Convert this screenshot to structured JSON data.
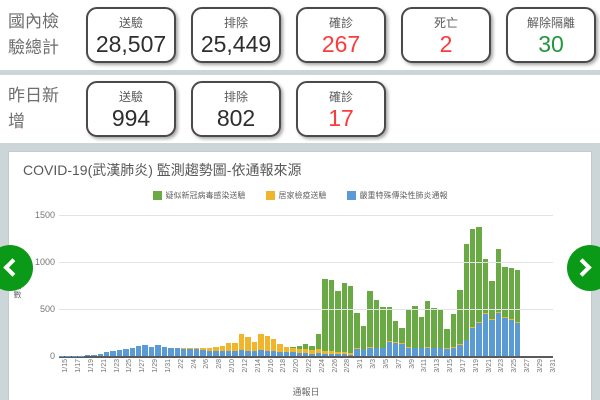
{
  "summary": {
    "rows": [
      {
        "label": "國內檢驗總計",
        "stats": [
          {
            "name": "送驗",
            "value": "28,507",
            "color": "#2e2e2e"
          },
          {
            "name": "排除",
            "value": "25,449",
            "color": "#2e2e2e"
          },
          {
            "name": "確診",
            "value": "267",
            "color": "#fb3b3b"
          },
          {
            "name": "死亡",
            "value": "2",
            "color": "#fb3b3b"
          },
          {
            "name": "解除隔離",
            "value": "30",
            "color": "#23963f"
          }
        ]
      },
      {
        "label": "昨日新增",
        "stats": [
          {
            "name": "送驗",
            "value": "994",
            "color": "#2e2e2e"
          },
          {
            "name": "排除",
            "value": "802",
            "color": "#2e2e2e"
          },
          {
            "name": "確診",
            "value": "17",
            "color": "#fb3b3b"
          }
        ]
      }
    ]
  },
  "carousel": {
    "prev_icon": "chevron-left",
    "next_icon": "chevron-right",
    "button_color": "#0a9a17"
  },
  "chart_data": {
    "type": "bar",
    "variant": "stacked",
    "title": "COVID-19(武漢肺炎) 監測趨勢圖-依通報來源",
    "xlabel": "通報日",
    "ylabel": "通報數",
    "ylim": [
      0,
      1500
    ],
    "yticks": [
      0,
      500,
      1000,
      1500
    ],
    "grid": true,
    "legend_position": "top",
    "x_tick_every": 2,
    "x": [
      "1/15",
      "1/16",
      "1/17",
      "1/18",
      "1/19",
      "1/20",
      "1/21",
      "1/22",
      "1/23",
      "1/24",
      "1/25",
      "1/26",
      "1/27",
      "1/28",
      "1/29",
      "1/30",
      "1/31",
      "2/1",
      "2/2",
      "2/3",
      "2/4",
      "2/5",
      "2/6",
      "2/7",
      "2/8",
      "2/9",
      "2/10",
      "2/11",
      "2/12",
      "2/13",
      "2/14",
      "2/15",
      "2/16",
      "2/17",
      "2/18",
      "2/19",
      "2/20",
      "2/21",
      "2/22",
      "2/23",
      "2/24",
      "2/25",
      "2/26",
      "2/27",
      "2/28",
      "2/29",
      "3/1",
      "3/2",
      "3/3",
      "3/4",
      "3/5",
      "3/6",
      "3/7",
      "3/8",
      "3/9",
      "3/10",
      "3/11",
      "3/12",
      "3/13",
      "3/14",
      "3/15",
      "3/16",
      "3/17",
      "3/18",
      "3/19",
      "3/20",
      "3/21",
      "3/22",
      "3/23",
      "3/24",
      "3/25",
      "3/26",
      "3/27",
      "3/28",
      "3/29",
      "3/30",
      "3/31"
    ],
    "series": [
      {
        "name": "嚴重特殊傳染性肺炎通報",
        "color": "#5b9bd5",
        "values": [
          2,
          3,
          5,
          5,
          8,
          12,
          22,
          40,
          55,
          65,
          75,
          90,
          105,
          115,
          100,
          115,
          100,
          90,
          80,
          75,
          70,
          70,
          60,
          55,
          55,
          50,
          55,
          50,
          60,
          55,
          50,
          60,
          55,
          50,
          45,
          40,
          40,
          35,
          30,
          25,
          30,
          25,
          25,
          20,
          20,
          15,
          70,
          60,
          90,
          85,
          80,
          150,
          140,
          130,
          90,
          85,
          80,
          90,
          85,
          80,
          75,
          90,
          120,
          170,
          300,
          350,
          450,
          380,
          460,
          400,
          380,
          350,
          0,
          0,
          0,
          0,
          0
        ]
      },
      {
        "name": "居家檢疫送驗",
        "color": "#f0b52d",
        "values": [
          0,
          0,
          0,
          0,
          0,
          0,
          0,
          0,
          0,
          0,
          0,
          0,
          0,
          0,
          0,
          0,
          0,
          0,
          0,
          10,
          15,
          20,
          30,
          35,
          40,
          60,
          80,
          90,
          170,
          150,
          100,
          175,
          160,
          130,
          85,
          60,
          50,
          45,
          40,
          35,
          40,
          30,
          25,
          25,
          20,
          20,
          10,
          5,
          5,
          5,
          5,
          5,
          5,
          5,
          5,
          5,
          5,
          5,
          5,
          5,
          5,
          5,
          5,
          5,
          10,
          10,
          10,
          10,
          10,
          10,
          10,
          10,
          0,
          0,
          0,
          0,
          0
        ]
      },
      {
        "name": "疑似新冠病毒感染送驗",
        "color": "#6aaa45",
        "values": [
          0,
          0,
          0,
          0,
          0,
          0,
          0,
          0,
          0,
          0,
          0,
          0,
          0,
          0,
          0,
          0,
          0,
          0,
          0,
          0,
          0,
          0,
          0,
          0,
          0,
          0,
          0,
          0,
          0,
          0,
          0,
          0,
          0,
          0,
          0,
          0,
          10,
          25,
          60,
          45,
          160,
          760,
          760,
          645,
          740,
          705,
          375,
          255,
          595,
          510,
          435,
          365,
          225,
          165,
          405,
          440,
          335,
          495,
          420,
          405,
          210,
          355,
          575,
          1015,
          1040,
          1015,
          570,
          410,
          670,
          540,
          550,
          550,
          0,
          0,
          0,
          0,
          0
        ]
      }
    ],
    "stack_bottom_to_top": [
      0,
      1,
      2
    ],
    "legend_display_order": [
      2,
      1,
      0
    ]
  }
}
